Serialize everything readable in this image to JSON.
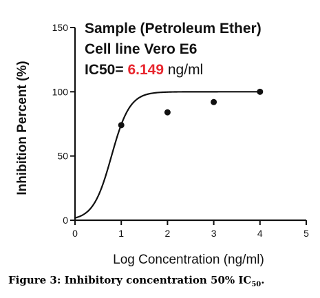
{
  "chart_data": {
    "type": "scatter",
    "title": "",
    "annotations": {
      "line1": "Sample (Petroleum Ether)",
      "line2": "Cell line Vero E6",
      "ic50_label": "IC50=",
      "ic50_value": "6.149",
      "ic50_unit": "ng/ml"
    },
    "xlabel": "Log Concentration (ng/ml)",
    "ylabel": "Inhibition Percent (%)",
    "xlim": [
      0,
      5
    ],
    "ylim": [
      0,
      150
    ],
    "x_ticks": [
      "0",
      "1",
      "2",
      "3",
      "4",
      "5"
    ],
    "y_ticks": [
      "0",
      "50",
      "100",
      "150"
    ],
    "series": [
      {
        "x": [
          1,
          2,
          3,
          4
        ],
        "y": [
          74,
          84,
          92,
          100
        ]
      }
    ],
    "fit_curve": {
      "type": "sigmoidal dose-response",
      "bottom": 0,
      "top": 100,
      "log_ic50": 0.789,
      "hill_slope": 2.2
    },
    "colors": {
      "ic50_value": "#e8262e",
      "ink": "#111111"
    }
  },
  "caption": {
    "text": "Figure 3: Inhibitory concentration 50% IC",
    "subscript": "50",
    "suffix": "."
  }
}
